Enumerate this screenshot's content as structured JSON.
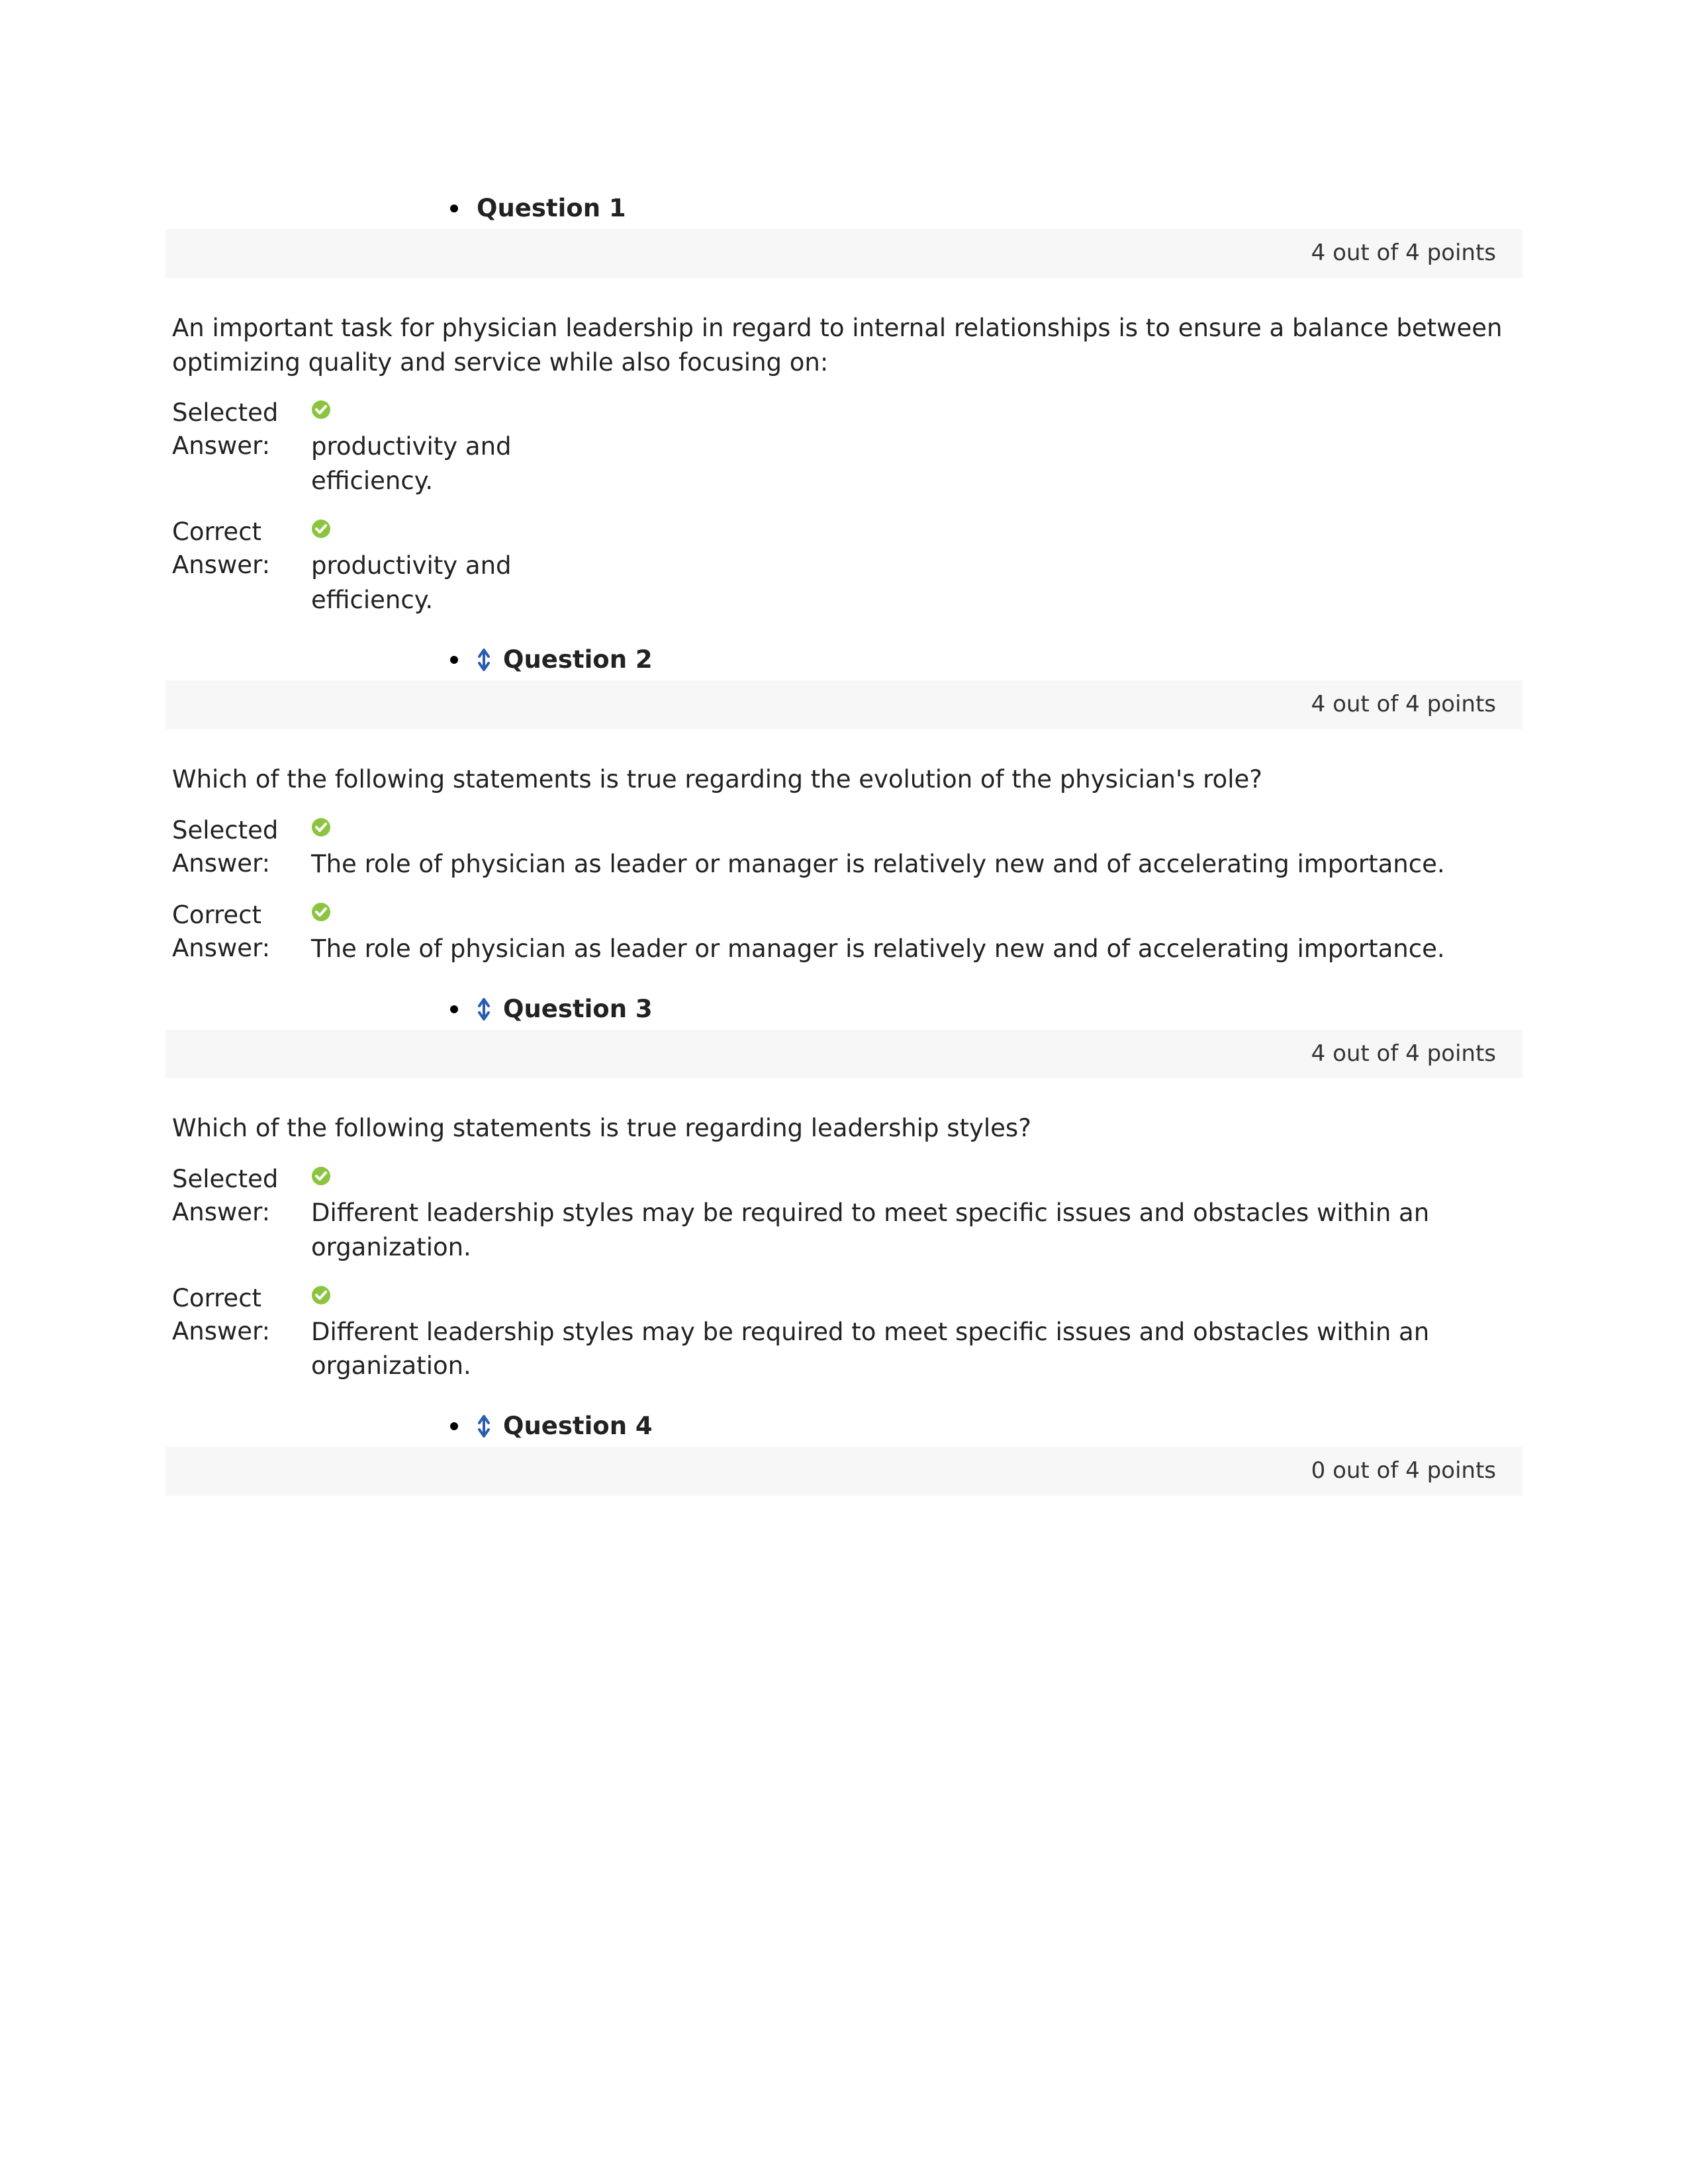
{
  "labels": {
    "selected_answer": "Selected Answer:",
    "correct_answer": "Correct Answer:"
  },
  "colors": {
    "check_fill": "#8bc53f",
    "check_mark": "#ffffff",
    "collapse_arrow": "#2a5db0",
    "points_bar_bg": "#f7f7f7",
    "text": "#222222"
  },
  "questions": [
    {
      "title": "Question 1",
      "show_collapse_icon": false,
      "points": "4 out of 4 points",
      "text": "An important task for physician leadership in regard to internal relationships is to ensure a balance between optimizing quality and service while also focusing on:",
      "selected_answer": "productivity and efficiency.",
      "correct_answer": "productivity and efficiency.",
      "narrow_answer": true,
      "show_answers": true
    },
    {
      "title": "Question 2",
      "show_collapse_icon": true,
      "points": "4 out of 4 points",
      "text": "Which of the following statements is true regarding the evolution of the physician's role?",
      "selected_answer": "The role of physician as leader or manager is relatively new and of accelerating importance.",
      "correct_answer": "The role of physician as leader or manager is relatively new and of accelerating importance.",
      "narrow_answer": false,
      "show_answers": true
    },
    {
      "title": "Question 3",
      "show_collapse_icon": true,
      "points": "4 out of 4 points",
      "text": "Which of the following statements is true regarding leadership styles?",
      "selected_answer": "Different leadership styles may be required to meet specific issues and obstacles within an organization.",
      "correct_answer": "Different leadership styles may be required to meet specific issues and obstacles within an organization.",
      "narrow_answer": false,
      "show_answers": true
    },
    {
      "title": "Question 4",
      "show_collapse_icon": true,
      "points": "0 out of 4 points",
      "text": "",
      "selected_answer": "",
      "correct_answer": "",
      "narrow_answer": false,
      "show_answers": false
    }
  ]
}
